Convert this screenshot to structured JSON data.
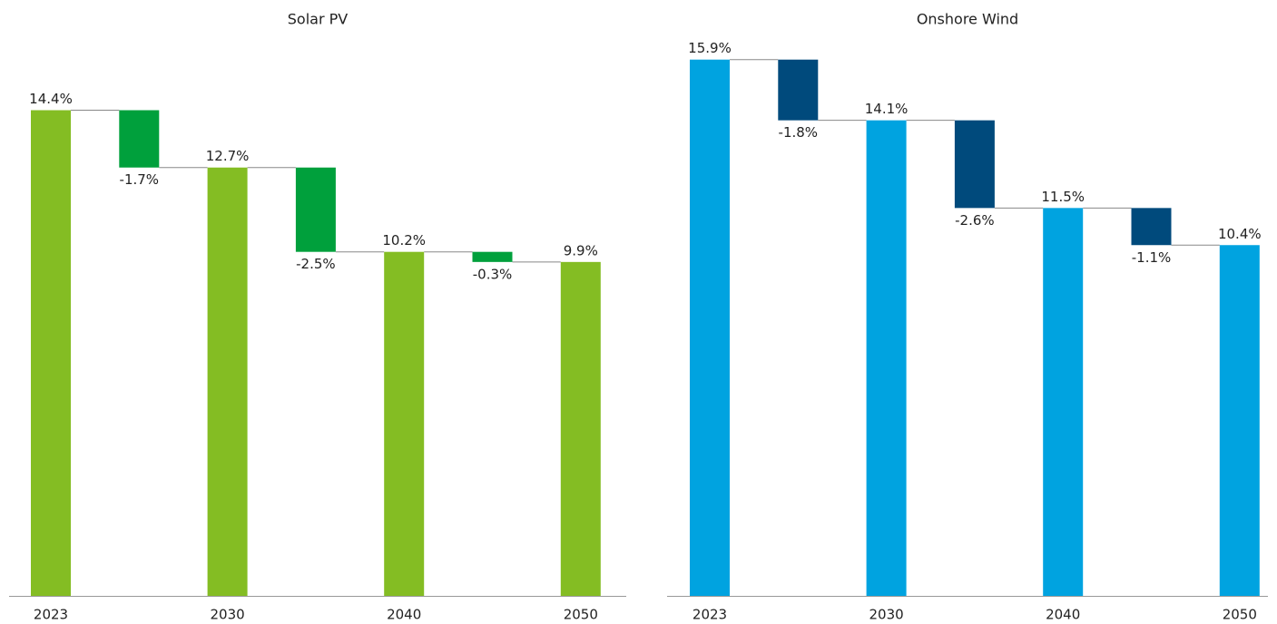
{
  "chart_data": [
    {
      "type": "waterfall",
      "title": "Solar PV",
      "categories": [
        "2023",
        null,
        "2030",
        null,
        "2040",
        null,
        "2050"
      ],
      "values": [
        14.4,
        -1.7,
        12.7,
        -2.5,
        10.2,
        -0.3,
        9.9
      ],
      "value_labels": [
        "14.4%",
        "-1.7%",
        "12.7%",
        "-2.5%",
        "10.2%",
        "-0.3%",
        "9.9%"
      ],
      "total_color": "#84bd23",
      "change_color": "#00a03c",
      "ylim": [
        0,
        16
      ]
    },
    {
      "type": "waterfall",
      "title": "Onshore Wind",
      "categories": [
        "2023",
        null,
        "2030",
        null,
        "2040",
        null,
        "2050"
      ],
      "values": [
        15.9,
        -1.8,
        14.1,
        -2.6,
        11.5,
        -1.1,
        10.4
      ],
      "value_labels": [
        "15.9%",
        "-1.8%",
        "14.1%",
        "-2.6%",
        "11.5%",
        "-1.1%",
        "10.4%"
      ],
      "total_color": "#00a3e0",
      "change_color": "#004a7c",
      "ylim": [
        0,
        16
      ]
    }
  ]
}
